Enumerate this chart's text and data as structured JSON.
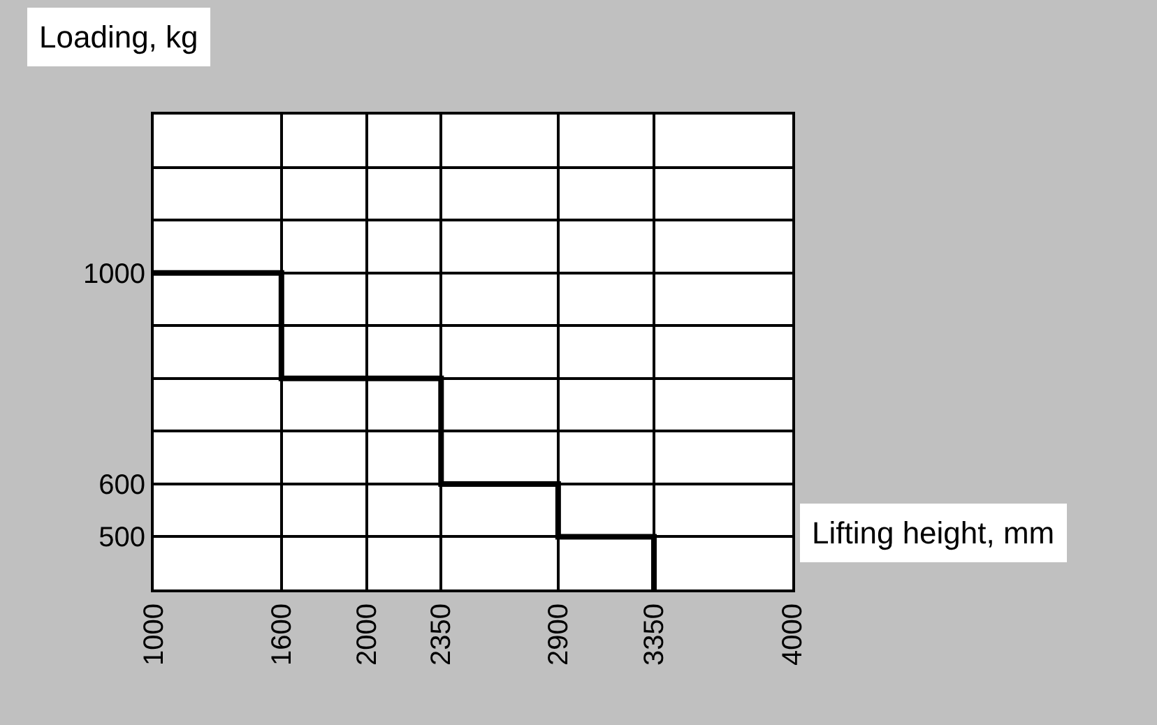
{
  "chart_data": {
    "type": "step",
    "xlabel": "Lifting height, mm",
    "ylabel": "Loading, kg",
    "x": [
      1000,
      1600,
      2350,
      2900,
      3350,
      3350
    ],
    "series": [
      {
        "color": "#000000",
        "values": [
          1000,
          800,
          600,
          500,
          500,
          400
        ]
      }
    ],
    "xlim": [
      1000,
      4000
    ],
    "xticks": [
      1000,
      1600,
      2000,
      2350,
      2900,
      3350,
      4000
    ],
    "ylim": [
      400,
      1300
    ],
    "yticks": [
      {
        "value": 400,
        "label": null
      },
      500,
      600,
      {
        "value": 700,
        "label": null
      },
      {
        "value": 800,
        "label": null
      },
      {
        "value": 900,
        "label": null
      },
      1000,
      {
        "value": 1100,
        "label": null
      },
      {
        "value": 1200,
        "label": null
      },
      {
        "value": 1300,
        "label": null
      }
    ],
    "grid": true,
    "legend": false,
    "marker": "none",
    "line_style": "solid"
  }
}
